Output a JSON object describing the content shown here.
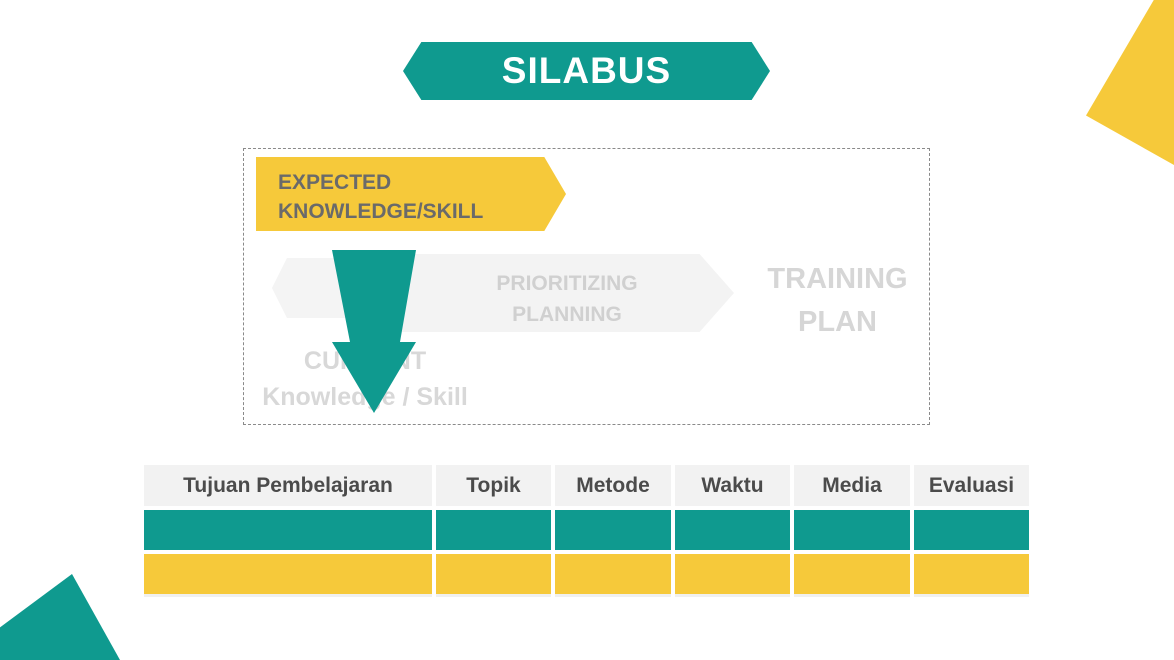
{
  "title": "SILABUS",
  "expected": {
    "line1": "EXPECTED",
    "line2": "KNOWLEDGE/SKILL"
  },
  "faded": {
    "prioritizing_line1": "PRIORITIZING",
    "prioritizing_line2": "PLANNING",
    "training_line1": "TRAINING",
    "training_line2": "PLAN",
    "current_line1": "CURRENT",
    "current_line2": "Knowledge / Skill"
  },
  "table": {
    "headers": [
      "Tujuan Pembelajaran",
      "Topik",
      "Metode",
      "Waktu",
      "Media",
      "Evaluasi"
    ]
  },
  "colors": {
    "teal": "#0f9a8f",
    "yellow": "#f6c93a"
  },
  "icons": {
    "down_arrow": "down-arrow-icon"
  }
}
